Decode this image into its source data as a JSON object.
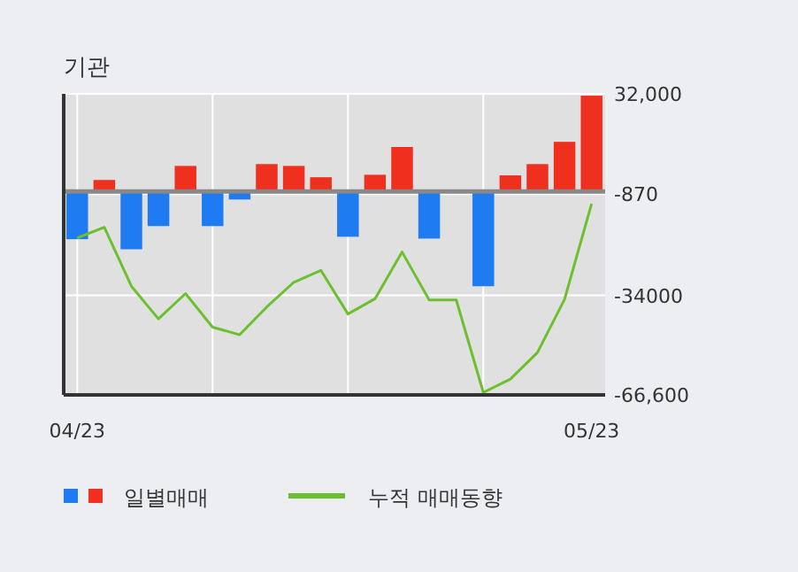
{
  "chart_data": {
    "type": "bar",
    "title": "기관",
    "categories": [
      "04/23",
      null,
      null,
      null,
      null,
      null,
      null,
      null,
      null,
      null,
      null,
      null,
      null,
      null,
      null,
      null,
      null,
      null,
      null,
      "05/23"
    ],
    "series": [
      {
        "name": "일별매매",
        "colors": [
          "#1f7bf2",
          "#f0301e",
          "#1f7bf2",
          "#1f7bf2",
          "#f0301e",
          "#1f7bf2",
          "#1f7bf2",
          "#f0301e",
          "#f0301e",
          "#f0301e",
          "#1f7bf2",
          "#f0301e",
          "#f0301e",
          "#1f7bf2",
          "#f0301e",
          "#1f7bf2",
          "#f0301e",
          "#f0301e",
          "#f0301e",
          "#f0301e"
        ],
        "values": [
          -15600,
          3800,
          -18900,
          -11300,
          8400,
          -11300,
          -2600,
          9000,
          8400,
          4700,
          -14800,
          5500,
          14600,
          -15400,
          0,
          -31000,
          5300,
          9000,
          16300,
          31400
        ]
      },
      {
        "name": "누적 매매동향",
        "type": "line",
        "color": "#6cbf2e",
        "values": [
          -15200,
          -11700,
          -31000,
          -41700,
          -33400,
          -44400,
          -46900,
          -37800,
          -29700,
          -25800,
          -40100,
          -35100,
          -19800,
          -35500,
          -35500,
          -65800,
          -61400,
          -52700,
          -35300,
          -4000
        ]
      }
    ],
    "ylim": [
      -66600,
      32000
    ],
    "yticks": [
      {
        "value": 32000,
        "label": "32,000"
      },
      {
        "value": -870,
        "label": "-870"
      },
      {
        "value": -34000,
        "label": "-34000"
      },
      {
        "value": -66600,
        "label": "-66,600"
      }
    ],
    "grid": true,
    "legend": "bottom",
    "marker": "none",
    "line_style": "solid"
  }
}
